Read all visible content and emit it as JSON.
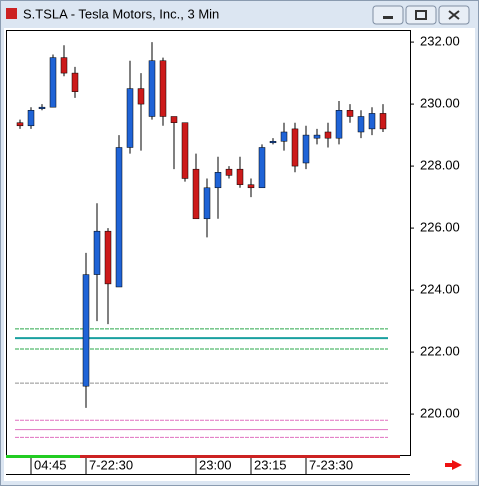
{
  "window": {
    "title": "S.TSLA - Tesla Motors, Inc., 3 Min"
  },
  "chart_data": {
    "type": "candlestick",
    "categories": [
      null,
      "04:45",
      null,
      null,
      null,
      null,
      "7-22:30",
      null,
      null,
      null,
      null,
      null,
      null,
      null,
      null,
      null,
      "23:00",
      null,
      null,
      null,
      null,
      "23:15",
      null,
      null,
      null,
      null,
      "7-23:30",
      null,
      null,
      null,
      null,
      null,
      null,
      null
    ],
    "open": [
      229.4,
      229.3,
      229.9,
      229.9,
      231.5,
      231.0,
      220.9,
      224.5,
      225.9,
      224.1,
      228.6,
      230.5,
      229.6,
      231.4,
      229.6,
      229.4,
      227.9,
      226.3,
      227.3,
      227.9,
      227.9,
      227.4,
      227.3,
      228.8,
      228.8,
      229.2,
      228.1,
      228.9,
      229.1,
      228.9,
      229.8,
      229.1,
      229.2,
      229.7
    ],
    "high": [
      229.5,
      229.9,
      230.0,
      231.6,
      231.9,
      231.2,
      225.2,
      226.8,
      226.0,
      229.0,
      231.4,
      231.0,
      232.0,
      231.5,
      229.6,
      229.4,
      228.4,
      227.6,
      228.3,
      228.0,
      228.3,
      227.6,
      228.7,
      228.9,
      229.4,
      229.4,
      229.3,
      229.2,
      229.4,
      230.1,
      230.0,
      229.8,
      229.9,
      230.0
    ],
    "low": [
      229.2,
      229.2,
      229.8,
      229.9,
      230.9,
      230.2,
      220.2,
      223.0,
      222.9,
      224.1,
      228.4,
      228.5,
      229.5,
      229.3,
      227.9,
      227.5,
      226.3,
      225.7,
      226.3,
      227.6,
      227.3,
      227.0,
      227.3,
      228.7,
      228.5,
      227.8,
      227.9,
      228.7,
      228.6,
      228.7,
      229.4,
      228.9,
      229.0,
      229.1
    ],
    "close": [
      229.3,
      229.8,
      229.9,
      231.5,
      231.0,
      230.4,
      224.5,
      225.9,
      224.2,
      228.6,
      230.5,
      230.0,
      231.4,
      229.6,
      229.4,
      227.6,
      226.3,
      227.3,
      227.8,
      227.7,
      227.4,
      227.3,
      228.6,
      228.8,
      229.1,
      228.0,
      229.0,
      229.0,
      228.9,
      229.8,
      229.6,
      229.6,
      229.7,
      229.2
    ],
    "up_color": "#1f63d6",
    "down_color": "#cc1a1a",
    "ylim": [
      218.68,
      232.39
    ],
    "yticks": [
      {
        "value": 220,
        "label": "220.00"
      },
      {
        "value": 222,
        "label": "222.00"
      },
      {
        "value": 224,
        "label": "224.00"
      },
      {
        "value": 226,
        "label": "226.00"
      },
      {
        "value": 228,
        "label": "228.00"
      },
      {
        "value": 230,
        "label": "230.00"
      },
      {
        "value": 232,
        "label": "232.00"
      }
    ],
    "levels": [
      {
        "value": 222.75,
        "color": "#2aa84a",
        "dash": true
      },
      {
        "value": 222.45,
        "color": "#19a0a0",
        "dash": false
      },
      {
        "value": 222.1,
        "color": "#2aa84a",
        "dash": true
      },
      {
        "value": 221.0,
        "color": "#909090",
        "dash": true
      },
      {
        "value": 219.8,
        "color": "#e070c0",
        "dash": true
      },
      {
        "value": 219.5,
        "color": "#e070c0",
        "dash": false
      },
      {
        "value": 219.25,
        "color": "#e070c0",
        "dash": true
      }
    ]
  }
}
